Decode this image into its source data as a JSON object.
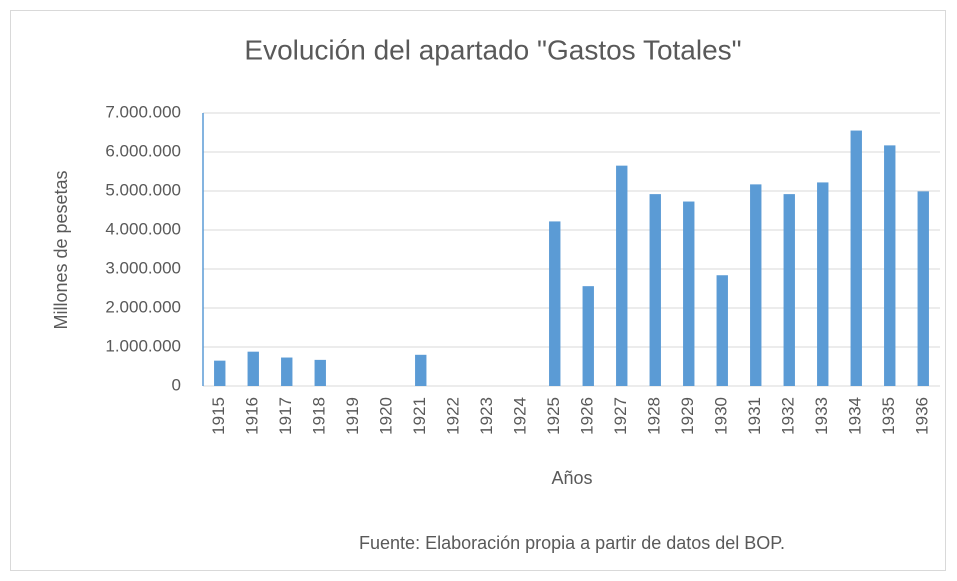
{
  "chart_data": {
    "type": "bar",
    "title": "Evolución del apartado \"Gastos Totales\"",
    "x_label": "Años",
    "y_label": "Millones de pesetas",
    "note": "Fuente: Elaboración propia a partir de datos del BOP.",
    "categories": [
      "1915",
      "1916",
      "1917",
      "1918",
      "1919",
      "1920",
      "1921",
      "1922",
      "1923",
      "1924",
      "1925",
      "1926",
      "1927",
      "1928",
      "1929",
      "1930",
      "1931",
      "1932",
      "1933",
      "1934",
      "1935",
      "1936"
    ],
    "values": [
      650000,
      880000,
      730000,
      670000,
      0,
      0,
      800000,
      0,
      0,
      0,
      4220000,
      2560000,
      5650000,
      4920000,
      4730000,
      2840000,
      5170000,
      4920000,
      5220000,
      6550000,
      6170000,
      4990000
    ],
    "color": "#5b9bd5",
    "ylim": [
      0,
      7000000
    ],
    "yticks": [
      0,
      {
        "value": 1000000,
        "label": "1.000.000"
      },
      {
        "value": 2000000,
        "label": "2.000.000"
      },
      {
        "value": 3000000,
        "label": "3.000.000"
      },
      {
        "value": 4000000,
        "label": "4.000.000"
      },
      {
        "value": 5000000,
        "label": "5.000.000"
      },
      {
        "value": 6000000,
        "label": "6.000.000"
      },
      {
        "value": 7000000,
        "label": "7.000.000"
      }
    ],
    "grid": true
  }
}
